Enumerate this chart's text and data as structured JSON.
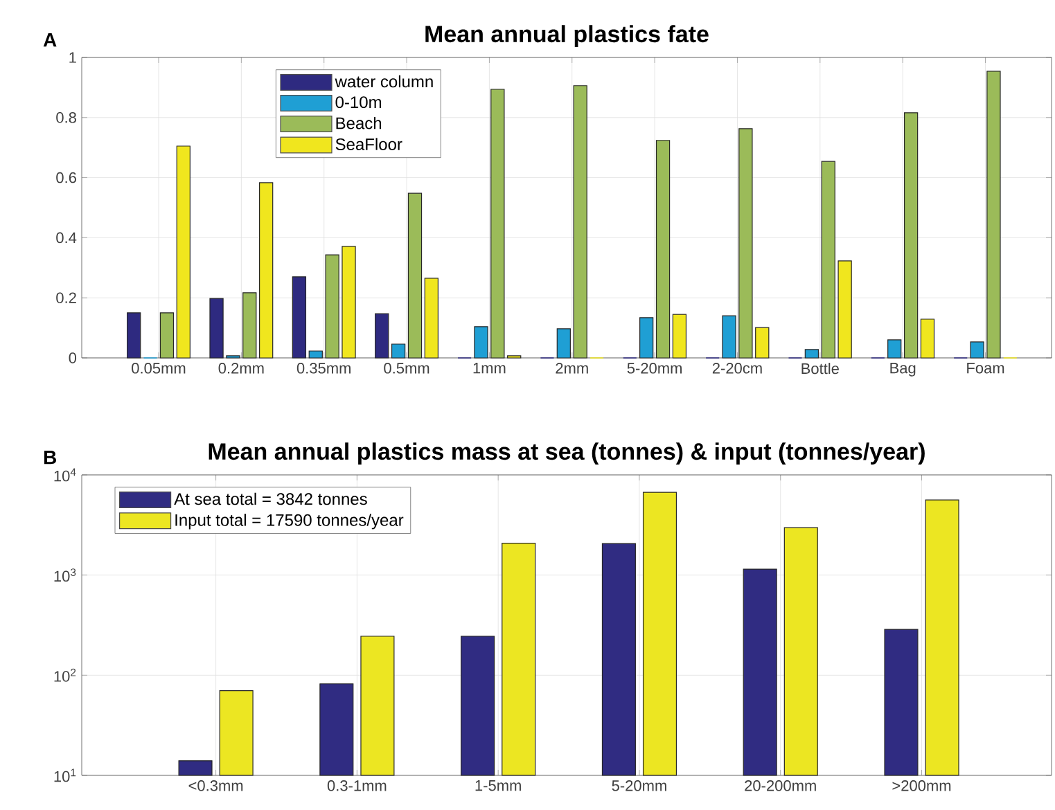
{
  "chart_data": [
    {
      "type": "bar",
      "title": "Mean annual plastics fate",
      "annotations": [
        "A"
      ],
      "categories": [
        "0.05mm",
        "0.2mm",
        "0.35mm",
        "0.5mm",
        "1mm",
        "2mm",
        "5-20mm",
        "2-20cm",
        "Bottle",
        "Bag",
        "Foam"
      ],
      "series": [
        {
          "name": "water column",
          "color": "#2e2a80",
          "values": [
            0.15,
            0.198,
            0.27,
            0.147,
            0,
            0,
            0,
            0,
            0,
            0,
            0
          ]
        },
        {
          "name": "0-10m",
          "color": "#1f9fd4",
          "values": [
            0,
            0.007,
            0.023,
            0.046,
            0.104,
            0.097,
            0.134,
            0.14,
            0.028,
            0.06,
            0.053
          ]
        },
        {
          "name": "Beach",
          "color": "#9bbb59",
          "values": [
            0.15,
            0.217,
            0.343,
            0.548,
            0.894,
            0.906,
            0.724,
            0.763,
            0.654,
            0.816,
            0.954
          ]
        },
        {
          "name": "SeaFloor",
          "color": "#f0e61e",
          "values": [
            0.705,
            0.583,
            0.371,
            0.265,
            0.007,
            0,
            0.145,
            0.101,
            0.323,
            0.129,
            0
          ]
        }
      ],
      "ylim": [
        0,
        1
      ],
      "yticks": [
        0,
        0.2,
        0.4,
        0.6,
        0.8,
        1
      ],
      "grid": true,
      "legend": "top left"
    },
    {
      "type": "bar",
      "title": "Mean annual plastics mass at sea (tonnes) & input (tonnes/year)",
      "annotations": [
        "B"
      ],
      "categories": [
        "<0.3mm",
        "0.3-1mm",
        "1-5mm",
        "5-20mm",
        "20-200mm",
        ">200mm"
      ],
      "series": [
        {
          "name": "At sea total = 3842 tonnes",
          "color": "#302c82",
          "values": [
            14,
            82,
            245,
            2065,
            1146,
            287
          ]
        },
        {
          "name": "Input total = 17590 tonnes/year",
          "color": "#ece622",
          "values": [
            70,
            245,
            2080,
            6710,
            2980,
            5630
          ]
        }
      ],
      "log": "y",
      "ylim": [
        10,
        10000
      ],
      "yticks": [
        {
          "value": 10,
          "label": "10$^{1}$"
        },
        {
          "value": 100,
          "label": "10$^{2}$"
        },
        {
          "value": 1000,
          "label": "10$^{3}$"
        },
        {
          "value": 10000,
          "label": "10$^{4}$"
        }
      ],
      "grid": true,
      "legend": "top left"
    }
  ]
}
